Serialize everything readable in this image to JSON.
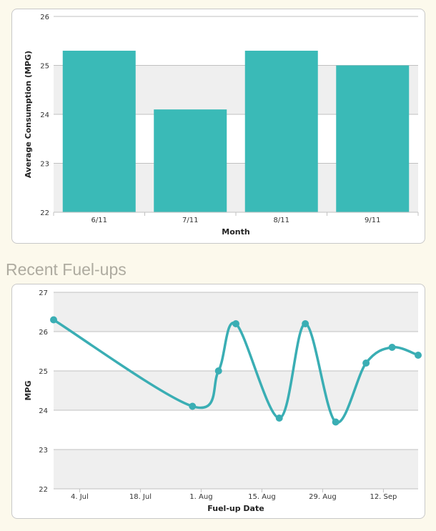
{
  "section_heading": "Recent Fuel-ups",
  "chart_data": [
    {
      "type": "bar",
      "categories": [
        "6/11",
        "7/11",
        "8/11",
        "9/11"
      ],
      "values": [
        25.3,
        24.1,
        25.3,
        25.0
      ],
      "xlabel": "Month",
      "ylabel": "Average Consumption (MPG)",
      "ylim": [
        22,
        26
      ],
      "yticks": [
        22,
        23,
        24,
        25,
        26
      ],
      "grid": true,
      "bar_color": "#3abab7",
      "band_color": "#efefef"
    },
    {
      "type": "line",
      "points": [
        {
          "x": "2011-06-28",
          "y": 26.3
        },
        {
          "x": "2011-07-30",
          "y": 24.1
        },
        {
          "x": "2011-08-05",
          "y": 25.0
        },
        {
          "x": "2011-08-09",
          "y": 26.2
        },
        {
          "x": "2011-08-19",
          "y": 23.8
        },
        {
          "x": "2011-08-25",
          "y": 26.2
        },
        {
          "x": "2011-09-01",
          "y": 23.7
        },
        {
          "x": "2011-09-08",
          "y": 25.2
        },
        {
          "x": "2011-09-14",
          "y": 25.6
        },
        {
          "x": "2011-09-20",
          "y": 25.4
        }
      ],
      "xlim": [
        "2011-06-28",
        "2011-09-20"
      ],
      "xticks": [
        {
          "x": "2011-07-04",
          "label": "4. Jul"
        },
        {
          "x": "2011-07-18",
          "label": "18. Jul"
        },
        {
          "x": "2011-08-01",
          "label": "1. Aug"
        },
        {
          "x": "2011-08-15",
          "label": "15. Aug"
        },
        {
          "x": "2011-08-29",
          "label": "29. Aug"
        },
        {
          "x": "2011-09-12",
          "label": "12. Sep"
        }
      ],
      "xlabel": "Fuel-up Date",
      "ylabel": "MPG",
      "ylim": [
        22,
        27
      ],
      "yticks": [
        22,
        23,
        24,
        25,
        26,
        27
      ],
      "grid": true,
      "line_color": "#3aaeb4",
      "band_color": "#efefef"
    }
  ]
}
